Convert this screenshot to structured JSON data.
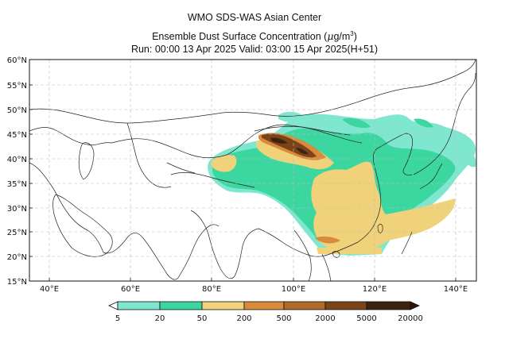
{
  "title": {
    "line1": "WMO SDS-WAS Asian Center",
    "line2_prefix": "Ensemble Dust Surface Concentration (",
    "line2_unit_mu": "μ",
    "line2_unit_rest": "g/m",
    "line2_unit_exp": "3",
    "line2_suffix": ")",
    "line3": "Run: 00:00 13 Apr 2025    Valid: 03:00 15 Apr 2025(H+51)"
  },
  "axes": {
    "lat_labels": [
      "60°N",
      "55°N",
      "50°N",
      "45°N",
      "40°N",
      "35°N",
      "30°N",
      "25°N",
      "20°N",
      "15°N"
    ],
    "lon_labels": [
      "40°E",
      "60°E",
      "80°E",
      "100°E",
      "120°E",
      "140°E"
    ],
    "lat_range": [
      15,
      60
    ],
    "lon_range": [
      35,
      150
    ],
    "grid": true
  },
  "colorbar": {
    "labels": [
      "5",
      "20",
      "50",
      "200",
      "500",
      "2000",
      "5000",
      "20000"
    ],
    "colors": [
      "#7fe6cf",
      "#3cd6a0",
      "#efd27a",
      "#d98a3a",
      "#b06a2a",
      "#7a4418",
      "#3e2210"
    ]
  },
  "colors": {
    "level1": "#7fe6cf",
    "level2": "#3cd6a0",
    "level3": "#efd27a",
    "level4": "#d98a3a",
    "level5": "#b06a2a",
    "level6": "#7a4418",
    "grid": "#bdbdbd"
  }
}
